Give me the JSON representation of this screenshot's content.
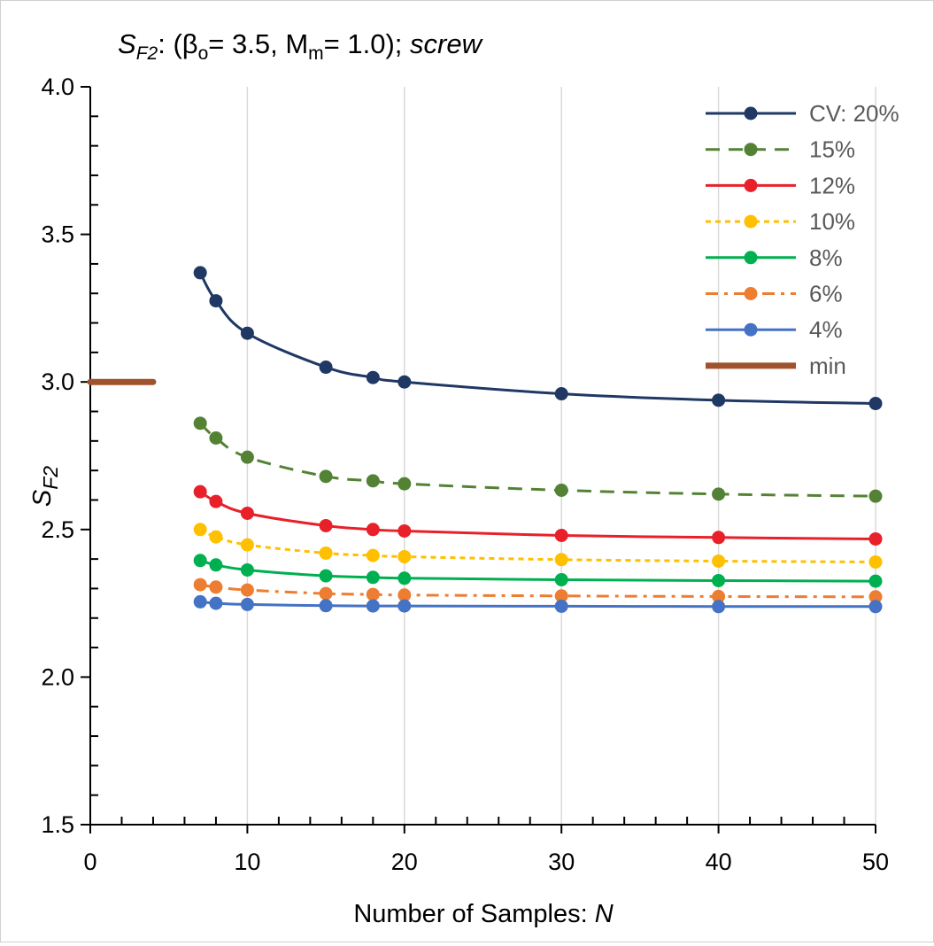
{
  "chart_data": {
    "type": "line",
    "title": {
      "symbol": "S",
      "symbol_sub": "F2",
      "colon": ":",
      "open": " (β",
      "beta_sub": "o",
      "beta_eq": "= 3.5, M",
      "m_sub": "m",
      "m_eq": "= 1.0); ",
      "italic_word": "screw"
    },
    "xlabel": {
      "text": "Number of Samples: ",
      "var": "N"
    },
    "ylabel": {
      "symbol": "S",
      "sub": "F2"
    },
    "xlim": [
      0,
      50
    ],
    "ylim": [
      1.5,
      4.0
    ],
    "xticks": [
      0,
      10,
      20,
      30,
      40,
      50
    ],
    "xtick_labels": [
      "0",
      "10",
      "20",
      "30",
      "40",
      "50"
    ],
    "yticks": [
      1.5,
      2.0,
      2.5,
      3.0,
      3.5,
      4.0
    ],
    "ytick_labels": [
      "1.5",
      "2.0",
      "2.5",
      "3.0",
      "3.5",
      "4.0"
    ],
    "grid": {
      "vertical": true,
      "horizontal": false
    },
    "legend_position": "top-right",
    "x": [
      7,
      8,
      10,
      15,
      18,
      20,
      30,
      40,
      50
    ],
    "series": [
      {
        "name": "CV: 20%",
        "color": "#1f3864",
        "dash": "solid",
        "marker": "circle",
        "values": [
          3.37,
          3.275,
          3.165,
          3.05,
          3.015,
          3.0,
          2.96,
          2.938,
          2.927
        ]
      },
      {
        "name": "15%",
        "color": "#548235",
        "dash": "dashed",
        "marker": "circle",
        "values": [
          2.86,
          2.81,
          2.745,
          2.68,
          2.665,
          2.655,
          2.633,
          2.62,
          2.613
        ]
      },
      {
        "name": "12%",
        "color": "#e8202a",
        "dash": "solid",
        "marker": "circle",
        "values": [
          2.628,
          2.595,
          2.555,
          2.513,
          2.5,
          2.495,
          2.48,
          2.473,
          2.468
        ]
      },
      {
        "name": "10%",
        "color": "#ffc000",
        "dash": "dotted",
        "marker": "circle",
        "values": [
          2.5,
          2.475,
          2.448,
          2.42,
          2.412,
          2.408,
          2.398,
          2.393,
          2.39
        ]
      },
      {
        "name": "8%",
        "color": "#00b050",
        "dash": "solid",
        "marker": "circle",
        "values": [
          2.395,
          2.38,
          2.363,
          2.343,
          2.338,
          2.335,
          2.33,
          2.327,
          2.325
        ]
      },
      {
        "name": "6%",
        "color": "#ed7d31",
        "dash": "dashdot",
        "marker": "circle",
        "values": [
          2.313,
          2.305,
          2.295,
          2.283,
          2.28,
          2.278,
          2.275,
          2.273,
          2.272
        ]
      },
      {
        "name": "4%",
        "color": "#4472c4",
        "dash": "solid",
        "marker": "circle",
        "values": [
          2.255,
          2.25,
          2.246,
          2.242,
          2.241,
          2.241,
          2.24,
          2.239,
          2.239
        ]
      },
      {
        "name": "min",
        "color": "#a0522d",
        "dash": "solid",
        "marker": "none",
        "thick": true,
        "x": [
          0,
          4
        ],
        "values": [
          3.0,
          3.0
        ]
      }
    ]
  }
}
